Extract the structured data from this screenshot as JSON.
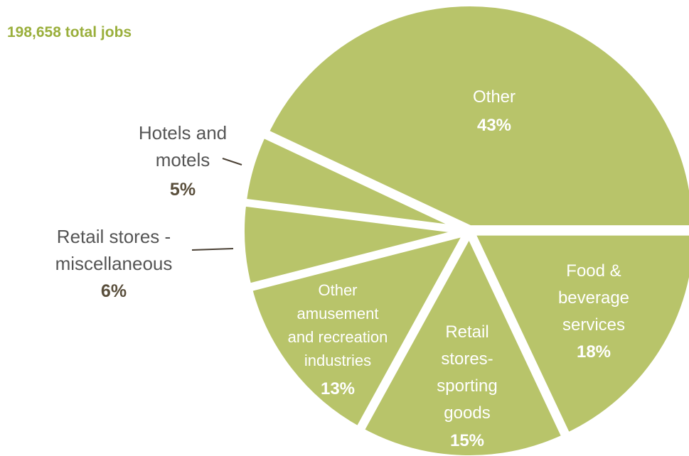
{
  "title": "198,658 total jobs",
  "colors": {
    "slice": "#b8c46a",
    "separator": "#ffffff",
    "title": "#9aaf3c",
    "outside_text": "#555555",
    "outside_pct": "#5a4f3c",
    "inside_text": "#ffffff",
    "leader_line": "#4a4034"
  },
  "chart_data": {
    "type": "pie",
    "title": "198,658 total jobs",
    "slices": [
      {
        "label": "Other",
        "value": 43,
        "value_label": "43%"
      },
      {
        "label": "Food & beverage services",
        "value": 18,
        "value_label": "18%"
      },
      {
        "label": "Retail stores-sporting goods",
        "value": 15,
        "value_label": "15%"
      },
      {
        "label": "Other amusement and recreation industries",
        "value": 13,
        "value_label": "13%"
      },
      {
        "label": "Retail stores - miscellaneous",
        "value": 6,
        "value_label": "6%"
      },
      {
        "label": "Hotels and motels",
        "value": 5,
        "value_label": "5%"
      }
    ],
    "legend": "none"
  }
}
